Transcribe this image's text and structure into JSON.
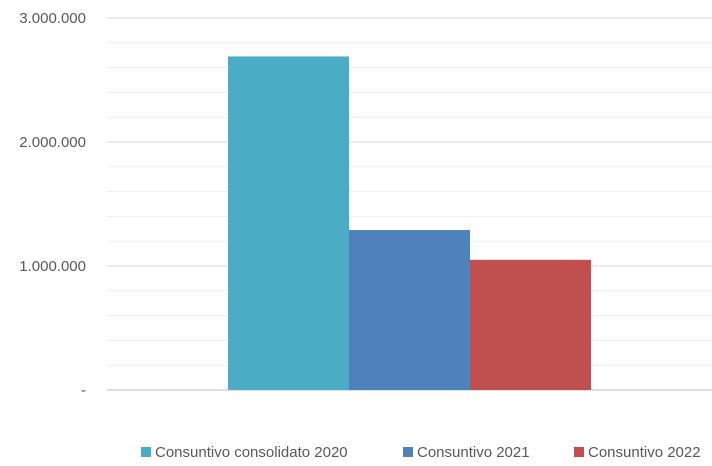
{
  "chart_data": {
    "type": "bar",
    "categories": [
      ""
    ],
    "series": [
      {
        "name": "Consuntivo consolidato 2020",
        "values": [
          2690000
        ],
        "color": "#4BACC6"
      },
      {
        "name": "Consuntivo 2021",
        "values": [
          1290000
        ],
        "color": "#4F81BD"
      },
      {
        "name": "Consuntivo 2022",
        "values": [
          1050000
        ],
        "color": "#C0504D"
      }
    ],
    "ylim": [
      0,
      3000000
    ],
    "yticks": [
      {
        "value": 0,
        "label": "-"
      },
      {
        "value": 1000000,
        "label": "1.000.000"
      },
      {
        "value": 2000000,
        "label": "2.000.000"
      },
      {
        "value": 3000000,
        "label": "3.000.000"
      }
    ],
    "grid": true,
    "legend_position": "bottom",
    "title": "",
    "xlabel": "",
    "ylabel": ""
  }
}
